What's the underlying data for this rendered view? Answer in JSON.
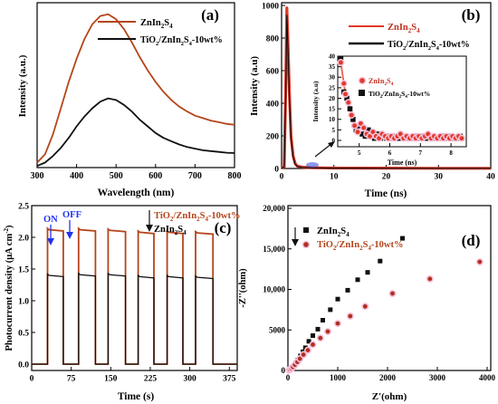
{
  "colors": {
    "orange": "#B5451B",
    "black": "#111111",
    "red": "#E03A2A",
    "pink": "#F6C2DC",
    "blue": "#2233EE",
    "darkred": "#B03020"
  },
  "panels": {
    "a": {
      "label": "(a)",
      "xlabel": "Wavelength (nm)",
      "ylabel": "Intensity (a.u.)",
      "legend": [
        {
          "main": "ZnIn",
          "sub1": "2",
          "mid": "S",
          "sub2": "4",
          "rest": ""
        },
        {
          "main": "TiO",
          "sub1": "2",
          "mid": "/ZnIn",
          "sub2": "2",
          "rest2": "S",
          "sub3": "4",
          "tail": "-10wt%"
        }
      ]
    },
    "b": {
      "label": "(b)",
      "xlabel": "Time (ns)",
      "ylabel": "Intensity (a.u)",
      "inset_xlabel": "Time (ns)",
      "inset_ylabel": "Intensity (a.u)"
    },
    "c": {
      "label": "(c)",
      "xlabel": "Time (s)",
      "ylabel": "Photocurrent density (μA cm",
      "ylabel_sup": "-2",
      "ylabel_end": ")",
      "on": "ON",
      "off": "OFF"
    },
    "d": {
      "label": "(d)",
      "xlabel": "Z'(ohm)",
      "ylabel": "-Z''(ohm)"
    }
  },
  "chart_data": [
    {
      "type": "line",
      "id": "a",
      "xlim": [
        300,
        800
      ],
      "xticks": [
        "300",
        "400",
        "500",
        "600",
        "700",
        "800"
      ],
      "series": [
        {
          "name": "ZnIn2S4",
          "color": "#B5451B",
          "points": [
            [
              300,
              0.03
            ],
            [
              320,
              0.08
            ],
            [
              340,
              0.2
            ],
            [
              360,
              0.36
            ],
            [
              380,
              0.52
            ],
            [
              400,
              0.66
            ],
            [
              420,
              0.78
            ],
            [
              440,
              0.87
            ],
            [
              460,
              0.92
            ],
            [
              480,
              0.93
            ],
            [
              500,
              0.9
            ],
            [
              520,
              0.84
            ],
            [
              540,
              0.76
            ],
            [
              560,
              0.67
            ],
            [
              580,
              0.59
            ],
            [
              600,
              0.52
            ],
            [
              620,
              0.46
            ],
            [
              640,
              0.41
            ],
            [
              660,
              0.37
            ],
            [
              680,
              0.34
            ],
            [
              700,
              0.315
            ],
            [
              720,
              0.3
            ],
            [
              740,
              0.285
            ],
            [
              760,
              0.275
            ],
            [
              780,
              0.265
            ],
            [
              800,
              0.26
            ]
          ]
        },
        {
          "name": "TiO2/ZnIn2S4-10wt%",
          "color": "#111111",
          "points": [
            [
              300,
              0.01
            ],
            [
              320,
              0.03
            ],
            [
              340,
              0.07
            ],
            [
              360,
              0.12
            ],
            [
              380,
              0.18
            ],
            [
              400,
              0.25
            ],
            [
              420,
              0.31
            ],
            [
              440,
              0.36
            ],
            [
              460,
              0.4
            ],
            [
              480,
              0.42
            ],
            [
              500,
              0.41
            ],
            [
              520,
              0.38
            ],
            [
              540,
              0.34
            ],
            [
              560,
              0.29
            ],
            [
              580,
              0.25
            ],
            [
              600,
              0.21
            ],
            [
              620,
              0.18
            ],
            [
              640,
              0.16
            ],
            [
              660,
              0.14
            ],
            [
              680,
              0.125
            ],
            [
              700,
              0.115
            ],
            [
              720,
              0.105
            ],
            [
              740,
              0.1
            ],
            [
              760,
              0.095
            ],
            [
              780,
              0.09
            ],
            [
              800,
              0.088
            ]
          ]
        }
      ]
    },
    {
      "type": "line",
      "id": "b",
      "xlim": [
        0,
        40
      ],
      "ylim": [
        0,
        1000
      ],
      "xticks": [
        "0",
        "10",
        "20",
        "30",
        "40"
      ],
      "yticks": [
        "0",
        "200",
        "400",
        "600",
        "800",
        "1000"
      ],
      "series": [
        {
          "name": "ZnIn2S4",
          "color": "#E03A2A",
          "points": [
            [
              0,
              2
            ],
            [
              0.5,
              10
            ],
            [
              0.8,
              500
            ],
            [
              1.0,
              985
            ],
            [
              1.2,
              800
            ],
            [
              1.5,
              450
            ],
            [
              1.8,
              200
            ],
            [
              2.2,
              80
            ],
            [
              2.6,
              30
            ],
            [
              3,
              15
            ],
            [
              4,
              8
            ],
            [
              5,
              6
            ],
            [
              6,
              5
            ],
            [
              8,
              4
            ],
            [
              10,
              3
            ],
            [
              15,
              2
            ],
            [
              20,
              2
            ],
            [
              30,
              1
            ],
            [
              40,
              1
            ]
          ]
        },
        {
          "name": "TiO2/ZnIn2S4-10wt%",
          "color": "#111111",
          "points": [
            [
              0,
              2
            ],
            [
              0.5,
              10
            ],
            [
              0.8,
              450
            ],
            [
              1.0,
              940
            ],
            [
              1.2,
              760
            ],
            [
              1.5,
              420
            ],
            [
              1.8,
              180
            ],
            [
              2.2,
              70
            ],
            [
              2.6,
              26
            ],
            [
              3,
              12
            ],
            [
              4,
              6
            ],
            [
              5,
              5
            ],
            [
              6,
              4
            ],
            [
              8,
              3
            ],
            [
              10,
              2
            ],
            [
              15,
              2
            ],
            [
              20,
              1
            ],
            [
              30,
              1
            ],
            [
              40,
              1
            ]
          ]
        }
      ],
      "inset": {
        "xlim": [
          4.3,
          8.5
        ],
        "ylim": [
          -3,
          40
        ],
        "xticks": [
          "5",
          "6",
          "7",
          "8"
        ],
        "yticks": [
          "0",
          "5",
          "10",
          "15",
          "20",
          "25",
          "30",
          "35",
          "40"
        ],
        "legend": [
          "ZnIn2S4",
          "TiO2/ZnIn2S4-10wt%"
        ],
        "zn": [
          [
            4.4,
            37
          ],
          [
            4.5,
            27
          ],
          [
            4.55,
            22
          ],
          [
            4.65,
            18
          ],
          [
            4.75,
            12
          ],
          [
            4.85,
            7
          ],
          [
            4.95,
            4
          ],
          [
            5.05,
            8
          ],
          [
            5.15,
            6
          ],
          [
            5.25,
            3
          ],
          [
            5.35,
            2
          ],
          [
            5.45,
            4
          ],
          [
            5.55,
            2
          ],
          [
            5.65,
            1
          ],
          [
            5.75,
            3
          ],
          [
            5.85,
            2
          ],
          [
            5.95,
            1
          ],
          [
            6.05,
            2
          ],
          [
            6.15,
            1
          ],
          [
            6.25,
            2
          ],
          [
            6.35,
            3
          ],
          [
            6.45,
            1
          ],
          [
            6.55,
            2
          ],
          [
            6.65,
            1
          ],
          [
            6.75,
            2
          ],
          [
            6.85,
            1
          ],
          [
            6.95,
            2
          ],
          [
            7.05,
            1
          ],
          [
            7.15,
            2
          ],
          [
            7.25,
            3
          ],
          [
            7.35,
            1
          ],
          [
            7.45,
            2
          ],
          [
            7.55,
            1
          ],
          [
            7.65,
            2
          ],
          [
            7.75,
            1
          ],
          [
            7.85,
            2
          ],
          [
            7.95,
            1
          ],
          [
            8.05,
            2
          ],
          [
            8.15,
            1
          ],
          [
            8.25,
            2
          ],
          [
            8.35,
            1
          ]
        ],
        "ti": [
          [
            4.4,
            39
          ],
          [
            4.5,
            23
          ],
          [
            4.6,
            20
          ],
          [
            4.7,
            15
          ],
          [
            4.8,
            10
          ],
          [
            4.9,
            5
          ],
          [
            5.0,
            7
          ],
          [
            5.1,
            3
          ],
          [
            5.2,
            2
          ],
          [
            5.3,
            5
          ],
          [
            5.4,
            2
          ],
          [
            5.5,
            1
          ],
          [
            5.6,
            3
          ],
          [
            5.7,
            1
          ],
          [
            5.8,
            2
          ],
          [
            5.9,
            1
          ],
          [
            6.0,
            2
          ],
          [
            6.1,
            1
          ],
          [
            6.2,
            2
          ],
          [
            6.3,
            1
          ],
          [
            6.4,
            1
          ],
          [
            6.5,
            2
          ],
          [
            6.6,
            1
          ],
          [
            6.7,
            1
          ],
          [
            6.8,
            2
          ],
          [
            6.9,
            1
          ],
          [
            7.0,
            1
          ],
          [
            7.1,
            2
          ],
          [
            7.2,
            1
          ],
          [
            7.3,
            1
          ],
          [
            7.4,
            2
          ],
          [
            7.5,
            1
          ],
          [
            7.6,
            1
          ],
          [
            7.7,
            2
          ],
          [
            7.8,
            1
          ],
          [
            7.9,
            1
          ],
          [
            8.0,
            2
          ],
          [
            8.1,
            1
          ],
          [
            8.2,
            1
          ],
          [
            8.3,
            2
          ]
        ]
      }
    },
    {
      "type": "line",
      "id": "c",
      "xlim": [
        0,
        390
      ],
      "ylim": [
        -0.1,
        2.5
      ],
      "xticks": [
        "0",
        "75",
        "150",
        "225",
        "300",
        "375"
      ],
      "yticks": [
        "0.0",
        "0.5",
        "1.0",
        "1.5",
        "2.0",
        "2.5"
      ],
      "on_times": [
        30,
        89,
        145,
        202,
        257,
        311
      ],
      "off_times": [
        60,
        121,
        178,
        232,
        287,
        344
      ],
      "series": [
        {
          "name": "TiO2/ZnIn2S4-10wt%",
          "color": "#B5451B",
          "on_levels": [
            2.12,
            2.12,
            2.11,
            2.08,
            2.08,
            2.07
          ]
        },
        {
          "name": "ZnIn2S4",
          "color": "#111111",
          "on_levels": [
            1.4,
            1.41,
            1.41,
            1.38,
            1.38,
            1.37
          ]
        }
      ]
    },
    {
      "type": "scatter",
      "id": "d",
      "xlim": [
        0,
        4000
      ],
      "ylim": [
        0,
        20000
      ],
      "xticks": [
        "0",
        "1000",
        "2000",
        "3000",
        "4000"
      ],
      "yticks": [
        "0",
        "5000",
        "10,000",
        "15,000",
        "20,000"
      ],
      "series": [
        {
          "name": "ZnIn2S4",
          "color": "#111111",
          "marker": "square",
          "points": [
            [
              30,
              60
            ],
            [
              60,
              150
            ],
            [
              90,
              300
            ],
            [
              120,
              500
            ],
            [
              160,
              900
            ],
            [
              200,
              1300
            ],
            [
              250,
              1800
            ],
            [
              300,
              2300
            ],
            [
              350,
              2800
            ],
            [
              420,
              3600
            ],
            [
              500,
              4300
            ],
            [
              600,
              5100
            ],
            [
              700,
              6200
            ],
            [
              850,
              7500
            ],
            [
              1000,
              8800
            ],
            [
              1200,
              9900
            ],
            [
              1400,
              11200
            ],
            [
              1600,
              12100
            ],
            [
              1850,
              13500
            ],
            [
              2300,
              16300
            ]
          ]
        },
        {
          "name": "TiO2/ZnIn2S4-10wt%",
          "color": "#B03020",
          "marker": "circle",
          "points": [
            [
              20,
              50
            ],
            [
              40,
              120
            ],
            [
              70,
              250
            ],
            [
              100,
              430
            ],
            [
              140,
              700
            ],
            [
              190,
              1050
            ],
            [
              240,
              1450
            ],
            [
              310,
              1950
            ],
            [
              400,
              2500
            ],
            [
              500,
              3200
            ],
            [
              650,
              4000
            ],
            [
              800,
              4800
            ],
            [
              1000,
              5800
            ],
            [
              1250,
              6700
            ],
            [
              1550,
              7900
            ],
            [
              2100,
              9500
            ],
            [
              2850,
              11300
            ],
            [
              3850,
              13400
            ]
          ]
        }
      ]
    }
  ]
}
